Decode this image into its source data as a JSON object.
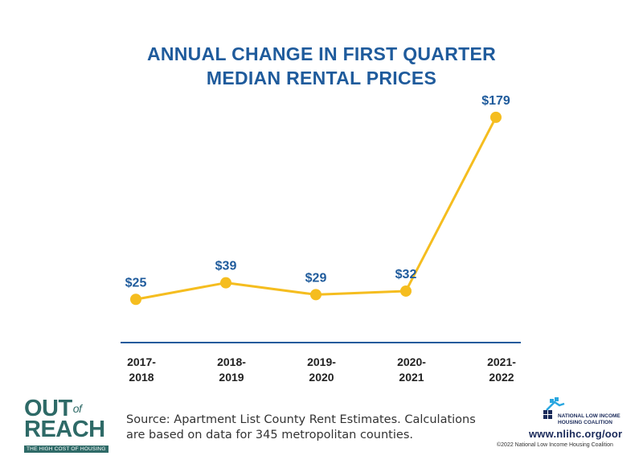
{
  "chart_data": {
    "type": "line",
    "title": [
      "ANNUAL CHANGE IN FIRST QUARTER",
      "MEDIAN RENTAL PRICES"
    ],
    "categories": [
      [
        "2017-",
        "2018"
      ],
      [
        "2018-",
        "2019"
      ],
      [
        "2019-",
        "2020"
      ],
      [
        "2020-",
        "2021"
      ],
      [
        "2021-",
        "2022"
      ]
    ],
    "values": [
      25,
      39,
      29,
      32,
      179
    ],
    "data_labels": [
      "$25",
      "$39",
      "$29",
      "$32",
      "$179"
    ],
    "xlabel": "",
    "ylabel": "",
    "ylim": [
      0,
      200
    ],
    "grid": false,
    "colors": {
      "line": "#f5bd1f",
      "marker": "#f5bd1f",
      "label": "#1f5b9c",
      "axis": "#1f5b9c",
      "tick": "#222222"
    }
  },
  "source": {
    "line1": "Source: Apartment List County Rent Estimates. Calculations",
    "line2": "are based on data for 345 metropolitan counties."
  },
  "logo_left": {
    "out": "OUT",
    "of": "of",
    "reach": "REACH",
    "tagline": "THE HIGH COST OF HOUSING"
  },
  "logo_right": {
    "name_line1": "NATIONAL LOW INCOME",
    "name_line2": "HOUSING COALITION",
    "url": "www.nlihc.org/oor",
    "copyright": "©2022 National Low Income Housing Coalition",
    "icon": "house-icon"
  }
}
